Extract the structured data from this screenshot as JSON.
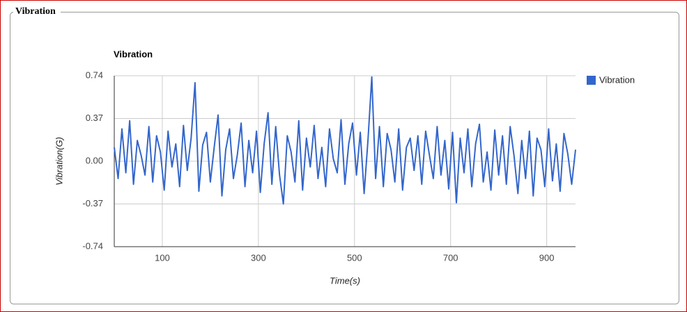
{
  "panel_title": "Vibration",
  "chart_data": {
    "type": "line",
    "title": "Vibration",
    "x_label": "Time(s)",
    "y_label": "Vibration(G)",
    "x": [
      0,
      8,
      16,
      24,
      32,
      40,
      48,
      56,
      64,
      72,
      80,
      88,
      96,
      104,
      112,
      120,
      128,
      136,
      144,
      152,
      160,
      168,
      176,
      184,
      192,
      200,
      208,
      216,
      224,
      232,
      240,
      248,
      256,
      264,
      272,
      280,
      288,
      296,
      304,
      312,
      320,
      328,
      336,
      344,
      352,
      360,
      368,
      376,
      384,
      392,
      400,
      408,
      416,
      424,
      432,
      440,
      448,
      456,
      464,
      472,
      480,
      488,
      496,
      504,
      512,
      520,
      528,
      536,
      544,
      552,
      560,
      568,
      576,
      584,
      592,
      600,
      608,
      616,
      624,
      632,
      640,
      648,
      656,
      664,
      672,
      680,
      688,
      696,
      704,
      712,
      720,
      728,
      736,
      744,
      752,
      760,
      768,
      776,
      784,
      792,
      800,
      808,
      816,
      824,
      832,
      840,
      848,
      856,
      864,
      872,
      880,
      888,
      896,
      904,
      912,
      920,
      928,
      936,
      944,
      952,
      960
    ],
    "series": [
      {
        "name": "Vibration",
        "color": "#3366cc",
        "values": [
          0.12,
          -0.15,
          0.28,
          -0.1,
          0.35,
          -0.2,
          0.18,
          0.05,
          -0.12,
          0.3,
          -0.18,
          0.22,
          0.08,
          -0.25,
          0.26,
          -0.05,
          0.15,
          -0.22,
          0.31,
          -0.08,
          0.2,
          0.68,
          -0.26,
          0.14,
          0.25,
          -0.18,
          0.12,
          0.4,
          -0.3,
          0.1,
          0.28,
          -0.15,
          0.05,
          0.33,
          -0.22,
          0.18,
          -0.1,
          0.26,
          -0.27,
          0.15,
          0.42,
          -0.2,
          0.3,
          -0.12,
          -0.37,
          0.22,
          0.08,
          -0.18,
          0.35,
          -0.25,
          0.2,
          -0.05,
          0.31,
          -0.15,
          0.12,
          -0.22,
          0.28,
          0.02,
          -0.1,
          0.36,
          -0.2,
          0.15,
          0.33,
          -0.12,
          0.25,
          -0.28,
          0.18,
          0.73,
          -0.15,
          0.3,
          -0.22,
          0.24,
          0.1,
          -0.18,
          0.28,
          -0.25,
          0.12,
          0.2,
          -0.08,
          0.22,
          -0.2,
          0.26,
          0.05,
          -0.15,
          0.3,
          -0.12,
          0.18,
          -0.24,
          0.25,
          -0.36,
          0.2,
          -0.1,
          0.28,
          -0.22,
          0.15,
          0.32,
          -0.18,
          0.08,
          -0.25,
          0.27,
          -0.12,
          0.22,
          -0.2,
          0.3,
          0.05,
          -0.28,
          0.18,
          -0.15,
          0.26,
          -0.3,
          0.2,
          0.1,
          -0.22,
          0.28,
          -0.17,
          0.15,
          -0.26,
          0.24,
          0.06,
          -0.2,
          0.1
        ]
      }
    ],
    "xlim": [
      0,
      960
    ],
    "ylim": [
      -0.74,
      0.74
    ],
    "xticks": [
      100,
      300,
      500,
      700,
      900
    ],
    "yticks": [
      0.74,
      0.37,
      {
        "value": 0,
        "label": "0.00"
      },
      -0.37,
      -0.74
    ],
    "grid": true,
    "legend": "right"
  }
}
